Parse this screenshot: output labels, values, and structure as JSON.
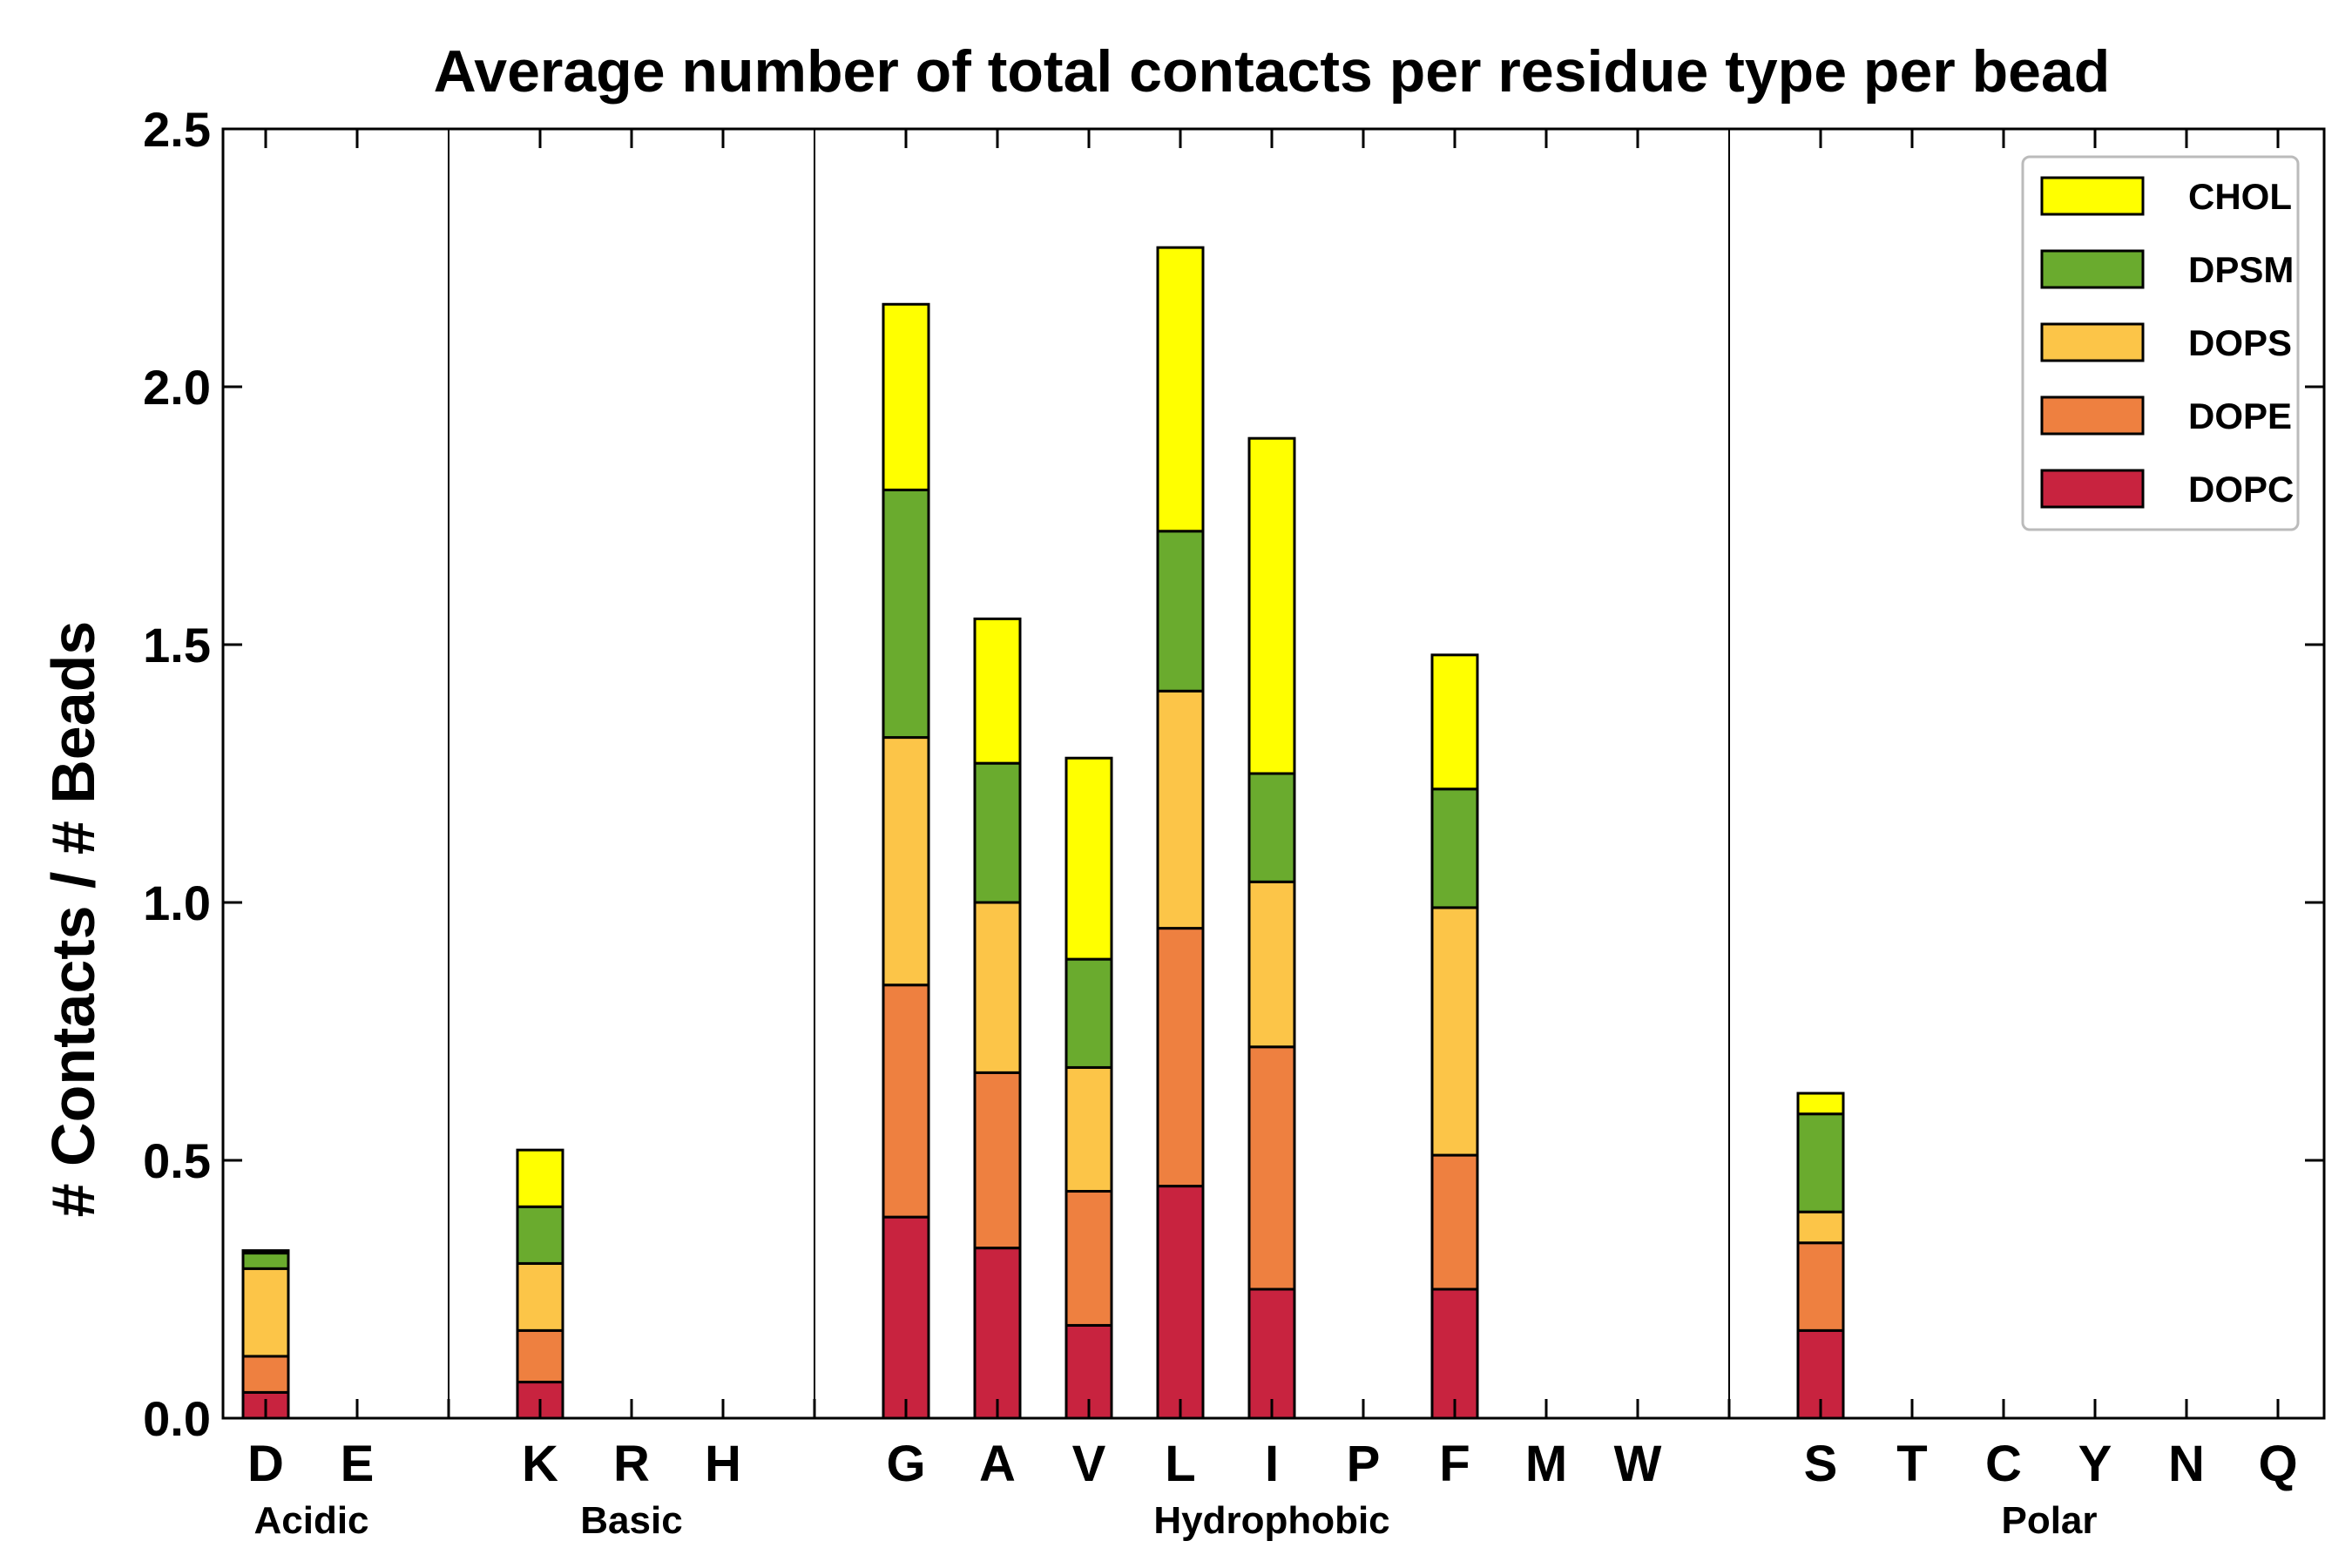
{
  "chart_data": {
    "type": "bar",
    "stacked": true,
    "title": "Average number of total contacts per residue type per bead",
    "xlabel": "",
    "ylabel": "# Contacts / # Beads",
    "ylim": [
      0,
      2.5
    ],
    "yticks": [
      "0.0",
      "0.5",
      "1.0",
      "1.5",
      "2.0",
      "2.5"
    ],
    "categories": [
      "D",
      "E",
      "K",
      "R",
      "H",
      "G",
      "A",
      "V",
      "L",
      "I",
      "P",
      "F",
      "M",
      "W",
      "S",
      "T",
      "C",
      "Y",
      "N",
      "Q"
    ],
    "groups": [
      {
        "name": "Acidic",
        "members": [
          "D",
          "E"
        ]
      },
      {
        "name": "Basic",
        "members": [
          "K",
          "R",
          "H"
        ]
      },
      {
        "name": "Hydrophobic",
        "members": [
          "G",
          "A",
          "V",
          "L",
          "I",
          "P",
          "F",
          "M",
          "W"
        ]
      },
      {
        "name": "Polar",
        "members": [
          "S",
          "T",
          "C",
          "Y",
          "N",
          "Q"
        ]
      }
    ],
    "series": [
      {
        "name": "DOPC",
        "color": "#c8233f",
        "values": [
          0.05,
          0,
          0.07,
          0,
          0,
          0.39,
          0.33,
          0.18,
          0.45,
          0.25,
          0,
          0.25,
          0,
          0,
          0.17,
          0,
          0,
          0,
          0,
          0
        ]
      },
      {
        "name": "DOPE",
        "color": "#ee8040",
        "values": [
          0.07,
          0,
          0.1,
          0,
          0,
          0.45,
          0.34,
          0.26,
          0.5,
          0.47,
          0,
          0.26,
          0,
          0,
          0.17,
          0,
          0,
          0,
          0,
          0
        ]
      },
      {
        "name": "DOPS",
        "color": "#fcc548",
        "values": [
          0.17,
          0,
          0.13,
          0,
          0,
          0.48,
          0.33,
          0.24,
          0.46,
          0.32,
          0,
          0.48,
          0,
          0,
          0.06,
          0,
          0,
          0,
          0,
          0
        ]
      },
      {
        "name": "DPSM",
        "color": "#6aab2e",
        "values": [
          0.03,
          0,
          0.11,
          0,
          0,
          0.48,
          0.27,
          0.21,
          0.31,
          0.21,
          0,
          0.23,
          0,
          0,
          0.19,
          0,
          0,
          0,
          0,
          0
        ]
      },
      {
        "name": "CHOL",
        "color": "#ffff00",
        "values": [
          0.005,
          0,
          0.11,
          0,
          0,
          0.36,
          0.28,
          0.39,
          0.55,
          0.65,
          0,
          0.26,
          0,
          0,
          0.04,
          0,
          0,
          0,
          0,
          0
        ]
      }
    ],
    "legend_order": [
      "CHOL",
      "DPSM",
      "DOPS",
      "DOPE",
      "DOPC"
    ],
    "legend_position": "top-right",
    "grid": false
  }
}
